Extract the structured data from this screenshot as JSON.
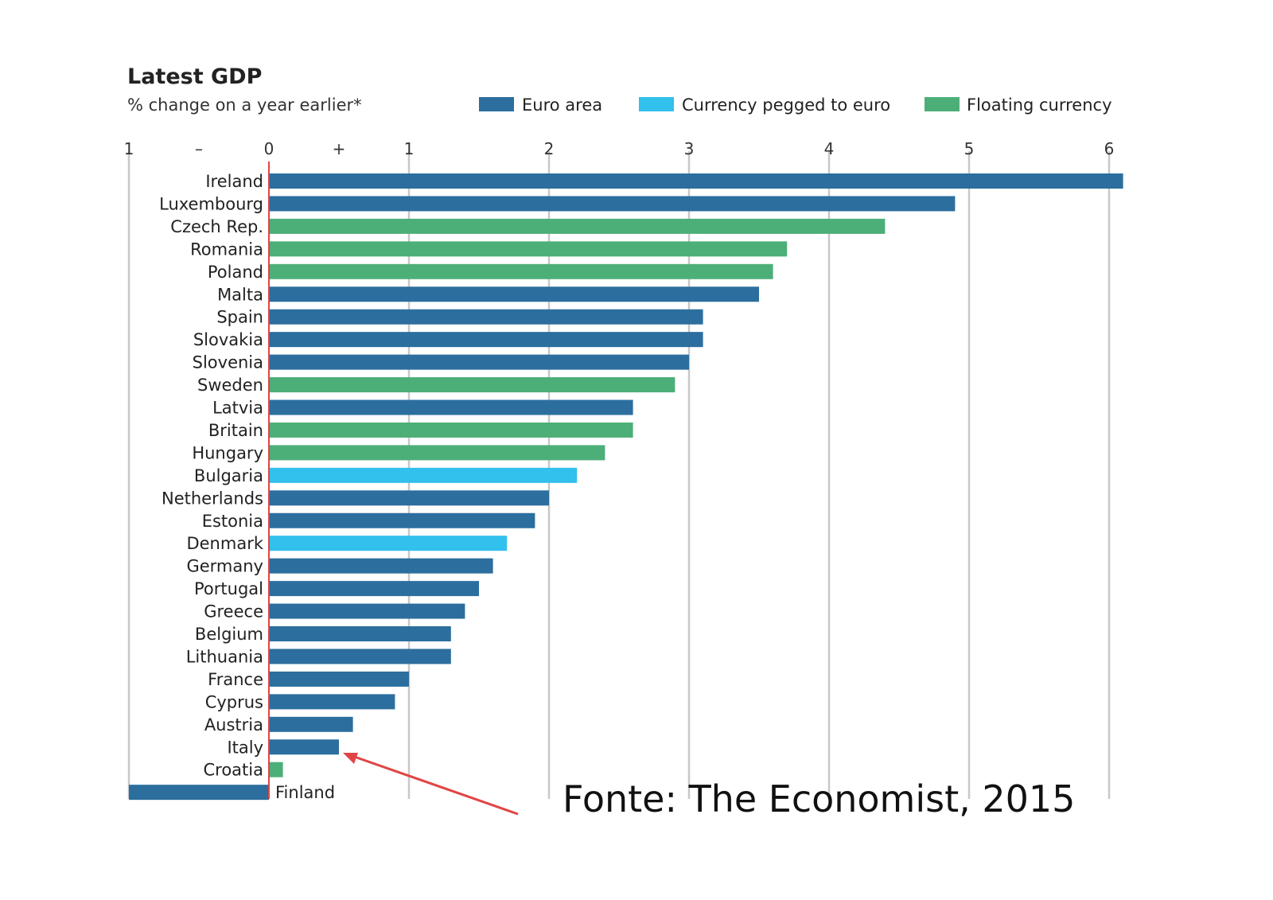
{
  "chart_data": {
    "type": "bar",
    "orientation": "horizontal",
    "title": "Latest GDP",
    "subtitle": "% change on a year earlier*",
    "legend": [
      {
        "key": "euro",
        "label": "Euro area",
        "color": "#2c6e9e"
      },
      {
        "key": "pegged",
        "label": "Currency pegged to euro",
        "color": "#32c0ec"
      },
      {
        "key": "floating",
        "label": "Floating currency",
        "color": "#4caf78"
      }
    ],
    "axis_ticks": [
      {
        "value": -1,
        "label": "1"
      },
      {
        "value": -0.5,
        "label": "–"
      },
      {
        "value": 0,
        "label": "0"
      },
      {
        "value": 0.5,
        "label": "+"
      },
      {
        "value": 1,
        "label": "1"
      },
      {
        "value": 2,
        "label": "2"
      },
      {
        "value": 3,
        "label": "3"
      },
      {
        "value": 4,
        "label": "4"
      },
      {
        "value": 5,
        "label": "5"
      },
      {
        "value": 6,
        "label": "6"
      }
    ],
    "xlim": [
      -1,
      6
    ],
    "gridlines": [
      -1,
      1,
      2,
      3,
      4,
      5,
      6
    ],
    "zero_line_color": "#e04545",
    "categories": [
      "Ireland",
      "Luxembourg",
      "Czech Rep.",
      "Romania",
      "Poland",
      "Malta",
      "Spain",
      "Slovakia",
      "Slovenia",
      "Sweden",
      "Latvia",
      "Britain",
      "Hungary",
      "Bulgaria",
      "Netherlands",
      "Estonia",
      "Denmark",
      "Germany",
      "Portugal",
      "Greece",
      "Belgium",
      "Lithuania",
      "France",
      "Cyprus",
      "Austria",
      "Italy",
      "Croatia",
      "Finland"
    ],
    "values": [
      6.1,
      4.9,
      4.4,
      3.7,
      3.6,
      3.5,
      3.1,
      3.1,
      3.0,
      2.9,
      2.6,
      2.6,
      2.4,
      2.2,
      2.0,
      1.9,
      1.7,
      1.6,
      1.5,
      1.4,
      1.3,
      1.3,
      1.0,
      0.9,
      0.6,
      0.5,
      0.1,
      -1.0
    ],
    "groups": [
      "euro",
      "euro",
      "floating",
      "floating",
      "floating",
      "euro",
      "euro",
      "euro",
      "euro",
      "floating",
      "euro",
      "floating",
      "floating",
      "pegged",
      "euro",
      "euro",
      "pegged",
      "euro",
      "euro",
      "euro",
      "euro",
      "euro",
      "euro",
      "euro",
      "euro",
      "euro",
      "floating",
      "euro"
    ],
    "annotation": {
      "text": "Fonte: The Economist, 2015",
      "arrow_target": "Italy",
      "arrow_color": "#e04545"
    }
  }
}
